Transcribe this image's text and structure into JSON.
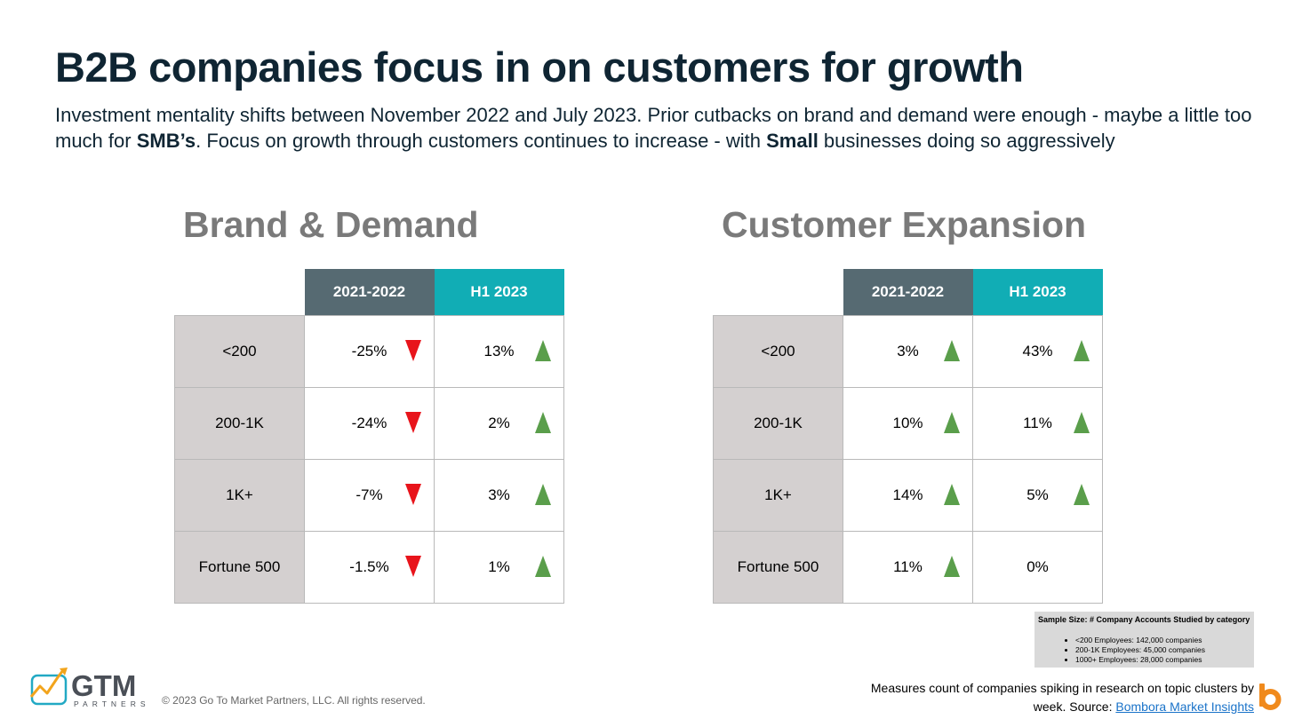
{
  "title": "B2B companies focus in on customers for growth",
  "subtitle": {
    "p1": "Investment mentality shifts between November 2022 and July 2023. Prior cutbacks on brand and demand were enough - maybe a little too much for ",
    "b1": "SMB’s",
    "p2": ". Focus on growth through customers continues to increase - with ",
    "b2": "Small",
    "p3": " businesses doing so aggressively"
  },
  "colors": {
    "up": "#5a9e4b",
    "down": "#e8141b",
    "header_prev": "#566a72",
    "header_h1": "#11adb5",
    "row_label_bg": "#d4d0d0"
  },
  "brand_demand": {
    "heading": "Brand & Demand",
    "headers": [
      "2021-2022",
      "H1 2023"
    ],
    "rows": [
      {
        "label": "<200",
        "prev": "-25%",
        "prev_dir": "down",
        "h1": "13%",
        "h1_dir": "up"
      },
      {
        "label": "200-1K",
        "prev": "-24%",
        "prev_dir": "down",
        "h1": "2%",
        "h1_dir": "up"
      },
      {
        "label": "1K+",
        "prev": "-7%",
        "prev_dir": "down",
        "h1": "3%",
        "h1_dir": "up"
      },
      {
        "label": "Fortune 500",
        "prev": "-1.5%",
        "prev_dir": "down",
        "h1": "1%",
        "h1_dir": "up"
      }
    ]
  },
  "customer_expansion": {
    "heading": "Customer Expansion",
    "headers": [
      "2021-2022",
      "H1 2023"
    ],
    "rows": [
      {
        "label": "<200",
        "prev": "3%",
        "prev_dir": "up",
        "h1": "43%",
        "h1_dir": "up"
      },
      {
        "label": "200-1K",
        "prev": "10%",
        "prev_dir": "up",
        "h1": "11%",
        "h1_dir": "up"
      },
      {
        "label": "1K+",
        "prev": "14%",
        "prev_dir": "up",
        "h1": "5%",
        "h1_dir": "up"
      },
      {
        "label": "Fortune 500",
        "prev": "11%",
        "prev_dir": "up",
        "h1": "0%",
        "h1_dir": "none"
      }
    ]
  },
  "sample_size": {
    "heading": "Sample Size: # Company Accounts Studied by category",
    "items": [
      "<200 Employees: 142,000 companies",
      "200-1K Employees: 45,000 companies",
      "1000+ Employees: 28,000 companies"
    ]
  },
  "footer": {
    "note_line1": "Measures count of companies spiking in research on topic clusters by",
    "note_line2_prefix": "week. Source: ",
    "source_link": "Bombora Market Insights",
    "copyright": "© 2023 Go To Market Partners, LLC. All rights reserved."
  },
  "logo": {
    "name": "GTM",
    "tagline": "PARTNERS",
    "icon": "gtm-growth-chart-icon"
  },
  "bombora_logo": {
    "icon": "bombora-b-icon"
  }
}
